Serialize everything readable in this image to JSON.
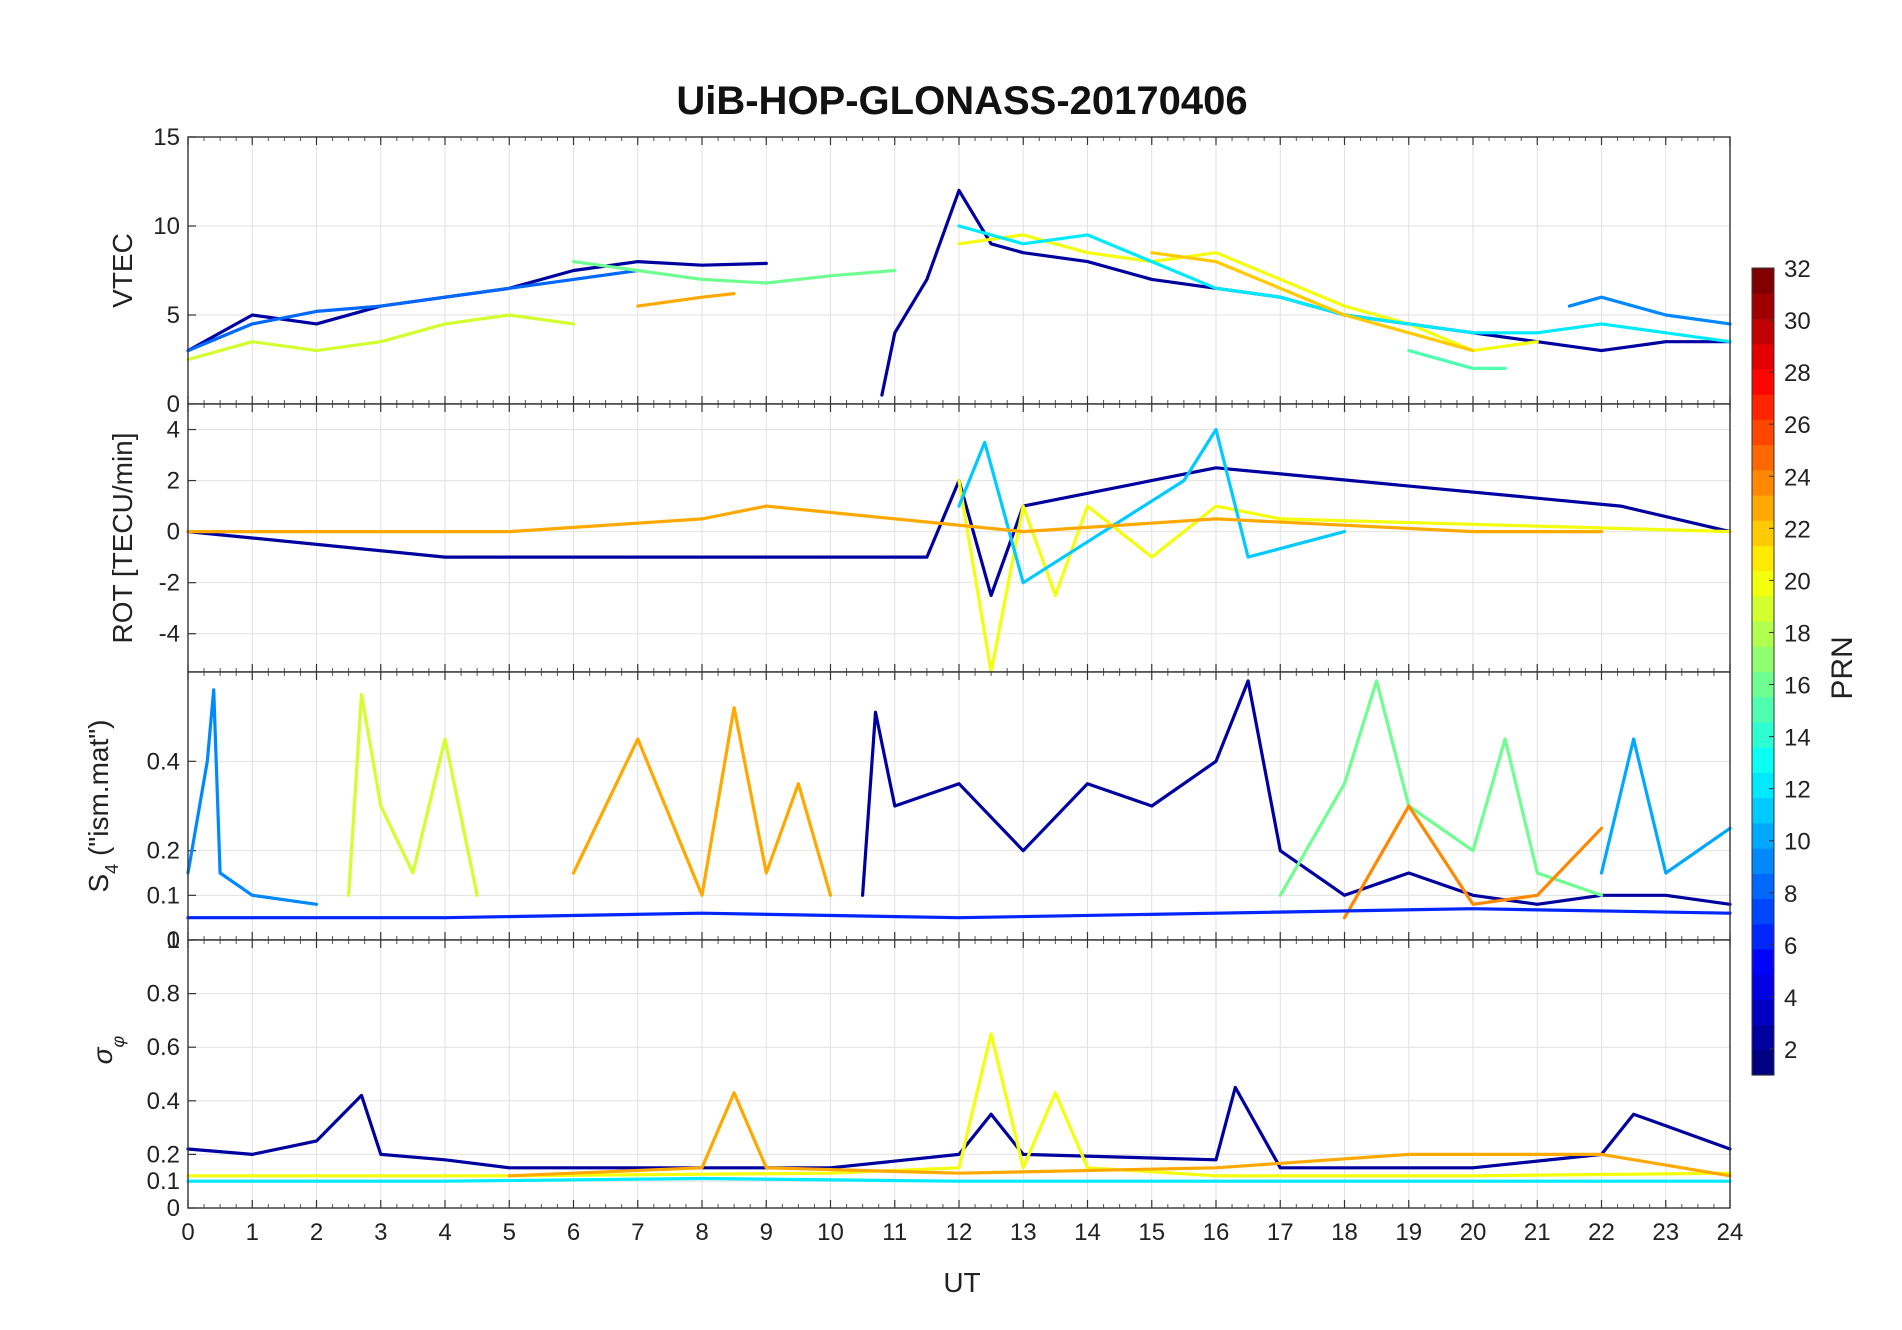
{
  "chart_data": {
    "type": "line",
    "title": "UiB-HOP-GLONASS-20170406",
    "xlabel": "UT",
    "x_ticks": [
      "0",
      "1",
      "2",
      "3",
      "4",
      "5",
      "6",
      "7",
      "8",
      "9",
      "10",
      "11",
      "12",
      "13",
      "14",
      "15",
      "16",
      "17",
      "18",
      "19",
      "20",
      "21",
      "22",
      "23",
      "24"
    ],
    "xlim": [
      0,
      24
    ],
    "grid": true,
    "colorbar": {
      "label": "PRN",
      "range": [
        1,
        32
      ],
      "ticks": [
        "2",
        "4",
        "6",
        "8",
        "10",
        "12",
        "14",
        "16",
        "18",
        "20",
        "22",
        "24",
        "26",
        "28",
        "30",
        "32"
      ],
      "colormap": "jet"
    },
    "panels": [
      {
        "name": "vtec",
        "ylabel": "VTEC",
        "ylim": [
          0,
          15
        ],
        "y_ticks": [
          "0",
          "5",
          "10",
          "15"
        ],
        "series": [
          {
            "prn": 2,
            "x": [
              0,
              1,
              2,
              3,
              4,
              5,
              6,
              7,
              8,
              9
            ],
            "y": [
              3,
              5,
              4.5,
              5.5,
              6,
              6.5,
              7.5,
              8,
              7.8,
              7.9
            ]
          },
          {
            "prn": 8,
            "x": [
              0,
              1,
              2,
              3,
              4,
              5,
              6,
              7
            ],
            "y": [
              3,
              4.5,
              5.2,
              5.5,
              6,
              6.5,
              7,
              7.5
            ]
          },
          {
            "prn": 19,
            "x": [
              0,
              1,
              2,
              3,
              4,
              5,
              6
            ],
            "y": [
              2.5,
              3.5,
              3,
              3.5,
              4.5,
              5,
              4.5
            ]
          },
          {
            "prn": 23,
            "x": [
              7,
              8,
              8.5
            ],
            "y": [
              5.5,
              6,
              6.2
            ]
          },
          {
            "prn": 16,
            "x": [
              6,
              7,
              8,
              9,
              10,
              11
            ],
            "y": [
              8,
              7.5,
              7,
              6.8,
              7.2,
              7.5
            ]
          },
          {
            "prn": 2,
            "x": [
              10.8,
              11,
              11.5,
              12,
              12.5,
              13,
              14,
              15,
              16,
              17,
              18,
              19,
              20,
              21,
              22,
              23,
              24
            ],
            "y": [
              0.5,
              4,
              7,
              12,
              9,
              8.5,
              8,
              7,
              6.5,
              6,
              5,
              4.5,
              4,
              3.5,
              3,
              3.5,
              3.5
            ]
          },
          {
            "prn": 20,
            "x": [
              12,
              13,
              14,
              15,
              16,
              17,
              18,
              19,
              20,
              21
            ],
            "y": [
              9,
              9.5,
              8.5,
              8,
              8.5,
              7,
              5.5,
              4.5,
              3,
              3.5
            ]
          },
          {
            "prn": 12,
            "x": [
              12,
              13,
              14,
              15,
              16,
              17,
              18,
              19,
              20,
              21,
              22,
              23,
              24
            ],
            "y": [
              10,
              9,
              9.5,
              8,
              6.5,
              6,
              5,
              4.5,
              4,
              4,
              4.5,
              4,
              3.5
            ]
          },
          {
            "prn": 22,
            "x": [
              15,
              16,
              17,
              18,
              19,
              20
            ],
            "y": [
              8.5,
              8,
              6.5,
              5,
              4,
              3
            ]
          },
          {
            "prn": 9,
            "x": [
              21.5,
              22,
              23,
              24
            ],
            "y": [
              5.5,
              6,
              5,
              4.5
            ]
          },
          {
            "prn": 15,
            "x": [
              19,
              20,
              20.5
            ],
            "y": [
              3,
              2,
              2
            ]
          }
        ]
      },
      {
        "name": "rot",
        "ylabel": "ROT [TECU/min]",
        "ylim": [
          -5.5,
          5
        ],
        "y_ticks": [
          "-4",
          "-2",
          "0",
          "2",
          "4"
        ],
        "series": [
          {
            "prn": 2,
            "x": [
              0,
              4,
              11.5,
              12,
              12.5,
              13,
              16,
              22.3,
              24
            ],
            "y": [
              0,
              -1,
              -1,
              2,
              -2.5,
              1,
              2.5,
              1,
              0
            ]
          },
          {
            "prn": 20,
            "x": [
              12,
              12.5,
              13,
              13.5,
              14,
              15,
              16,
              17,
              24
            ],
            "y": [
              2,
              -5.5,
              1,
              -2.5,
              1,
              -1,
              1,
              0.5,
              0
            ]
          },
          {
            "prn": 11,
            "x": [
              12,
              12.4,
              13,
              15.5,
              16,
              16.5,
              18
            ],
            "y": [
              1,
              3.5,
              -2,
              2,
              4,
              -1,
              0
            ]
          },
          {
            "prn": 23,
            "x": [
              0,
              5,
              8,
              9,
              13,
              16,
              20,
              22
            ],
            "y": [
              0,
              0,
              0.5,
              1,
              0,
              0.5,
              0,
              0
            ]
          }
        ]
      },
      {
        "name": "s4",
        "ylabel": "S4 (\"ism.mat\")",
        "ylim": [
          0,
          0.6
        ],
        "y_ticks": [
          "0",
          "0.1",
          "0.2",
          "0.4"
        ],
        "series": [
          {
            "prn": 9,
            "x": [
              0,
              0.3,
              0.4,
              0.5,
              1,
              2
            ],
            "y": [
              0.15,
              0.4,
              0.56,
              0.15,
              0.1,
              0.08
            ]
          },
          {
            "prn": 19,
            "x": [
              2.5,
              2.7,
              3,
              3.5,
              4,
              4.5
            ],
            "y": [
              0.1,
              0.55,
              0.3,
              0.15,
              0.45,
              0.1
            ]
          },
          {
            "prn": 23,
            "x": [
              6,
              7,
              8,
              8.5,
              9,
              9.5,
              10
            ],
            "y": [
              0.15,
              0.45,
              0.1,
              0.52,
              0.15,
              0.35,
              0.1
            ]
          },
          {
            "prn": 2,
            "x": [
              10.5,
              10.7,
              11,
              12,
              13,
              14,
              15,
              16,
              16.5,
              17,
              18,
              19,
              20,
              21,
              22,
              23,
              24
            ],
            "y": [
              0.1,
              0.51,
              0.3,
              0.35,
              0.2,
              0.35,
              0.3,
              0.4,
              0.58,
              0.2,
              0.1,
              0.15,
              0.1,
              0.08,
              0.1,
              0.1,
              0.08
            ]
          },
          {
            "prn": 16,
            "x": [
              17,
              18,
              18.5,
              19,
              20,
              20.5,
              21,
              22
            ],
            "y": [
              0.1,
              0.35,
              0.58,
              0.3,
              0.2,
              0.45,
              0.15,
              0.1
            ]
          },
          {
            "prn": 24,
            "x": [
              18,
              19,
              20,
              21,
              22
            ],
            "y": [
              0.05,
              0.3,
              0.08,
              0.1,
              0.25
            ]
          },
          {
            "prn": 10,
            "x": [
              22,
              22.5,
              23,
              24
            ],
            "y": [
              0.15,
              0.45,
              0.15,
              0.25
            ]
          },
          {
            "prn": 6,
            "x": [
              0,
              4,
              8,
              12,
              16,
              20,
              24
            ],
            "y": [
              0.05,
              0.05,
              0.06,
              0.05,
              0.06,
              0.07,
              0.06
            ]
          }
        ]
      },
      {
        "name": "sigma_phi",
        "ylabel": "σφ",
        "ylim": [
          0,
          1
        ],
        "y_ticks": [
          "0",
          "0.1",
          "0.2",
          "0.4",
          "0.6",
          "0.8",
          "1"
        ],
        "series": [
          {
            "prn": 2,
            "x": [
              0,
              1,
              2,
              2.7,
              3,
              4,
              5,
              10,
              12,
              12.5,
              13,
              16,
              16.3,
              17,
              20,
              22,
              22.5,
              24
            ],
            "y": [
              0.22,
              0.2,
              0.25,
              0.42,
              0.2,
              0.18,
              0.15,
              0.15,
              0.2,
              0.35,
              0.2,
              0.18,
              0.45,
              0.15,
              0.15,
              0.2,
              0.35,
              0.22
            ]
          },
          {
            "prn": 20,
            "x": [
              0,
              5,
              10,
              12,
              12.5,
              13,
              13.5,
              14,
              16,
              20,
              24
            ],
            "y": [
              0.12,
              0.12,
              0.13,
              0.15,
              0.65,
              0.15,
              0.43,
              0.15,
              0.12,
              0.12,
              0.13
            ]
          },
          {
            "prn": 23,
            "x": [
              5,
              8,
              8.5,
              9,
              12,
              16,
              19,
              22,
              24
            ],
            "y": [
              0.12,
              0.15,
              0.43,
              0.15,
              0.13,
              0.15,
              0.2,
              0.2,
              0.12
            ]
          },
          {
            "prn": 12,
            "x": [
              0,
              4,
              8,
              12,
              16,
              20,
              24
            ],
            "y": [
              0.1,
              0.1,
              0.11,
              0.1,
              0.1,
              0.1,
              0.1
            ]
          }
        ]
      }
    ]
  }
}
